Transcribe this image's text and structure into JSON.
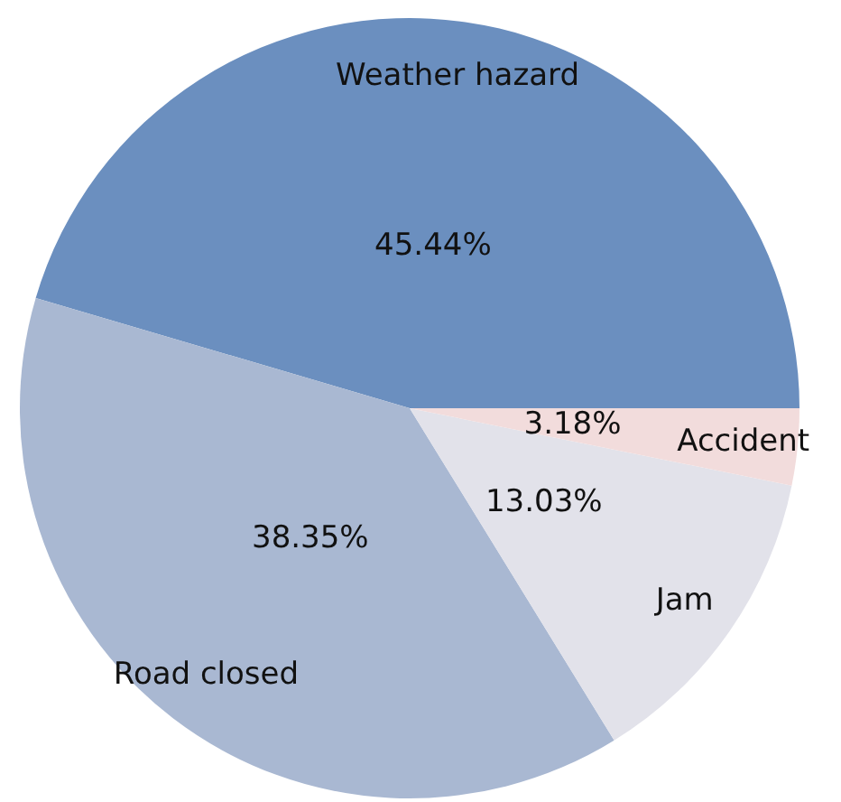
{
  "chart_data": {
    "type": "pie",
    "categories": [
      "Weather hazard",
      "Road closed",
      "Jam",
      "Accident"
    ],
    "values": [
      45.44,
      38.35,
      13.03,
      3.18
    ],
    "value_labels": [
      "45.44%",
      "38.35%",
      "13.03%",
      "3.18%"
    ],
    "colors": [
      "#6b8fbf",
      "#a9b8d2",
      "#e2e2ea",
      "#f2dcdc"
    ]
  }
}
